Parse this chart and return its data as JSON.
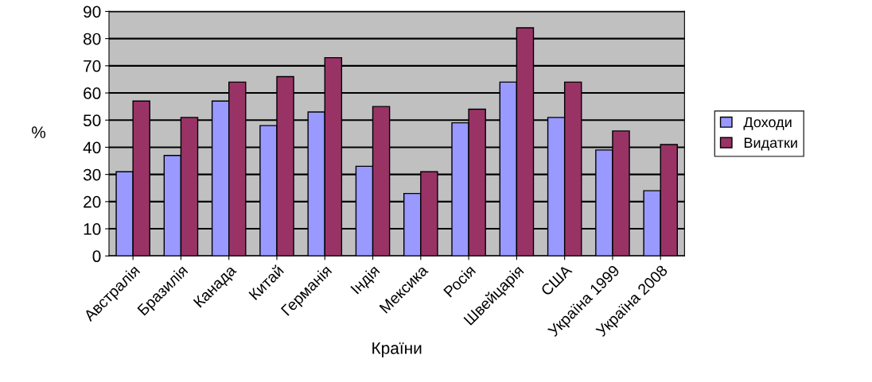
{
  "chart_data": {
    "type": "bar",
    "xlabel": "Країни",
    "ylabel": "%",
    "categories": [
      "Австралія",
      "Бразилія",
      "Канада",
      "Китай",
      "Германія",
      "Індія",
      "Мексика",
      "Росія",
      "Швейцарія",
      "США",
      "Україна 1999",
      "Україна 2008"
    ],
    "series": [
      {
        "name": "Доходи",
        "color": "#9999ff",
        "values": [
          31,
          37,
          57,
          48,
          53,
          33,
          23,
          49,
          64,
          51,
          39,
          24
        ]
      },
      {
        "name": "Видатки",
        "color": "#993366",
        "values": [
          57,
          51,
          64,
          66,
          73,
          55,
          31,
          54,
          84,
          64,
          46,
          41
        ]
      }
    ],
    "ylim": [
      0,
      90
    ],
    "yticks": [
      0,
      10,
      20,
      30,
      40,
      50,
      60,
      70,
      80,
      90
    ],
    "grid": "y",
    "legend": "right"
  }
}
